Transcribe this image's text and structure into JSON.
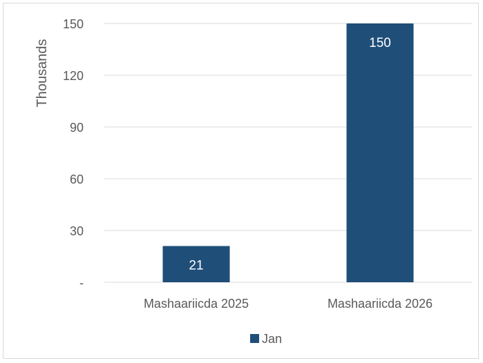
{
  "chart_data": {
    "type": "bar",
    "categories": [
      "Mashaariicda 2025",
      "Mashaariicda 2026"
    ],
    "series": [
      {
        "name": "Jan",
        "values": [
          21,
          150
        ],
        "data_labels": [
          "21",
          "150"
        ],
        "color": "#1F4E79"
      }
    ],
    "ylabel": "Thousands",
    "ylim": [
      0,
      150
    ],
    "yticks": [
      0,
      30,
      60,
      90,
      120,
      150
    ],
    "ytick_labels": [
      "-",
      "30",
      "60",
      "90",
      "120",
      "150"
    ],
    "grid": true,
    "legend_position": "bottom",
    "colors": {
      "gridline": "#D9D9D9",
      "axis_text": "#595959",
      "data_label": "#FFFFFF",
      "border": "#D9D9D9"
    }
  }
}
